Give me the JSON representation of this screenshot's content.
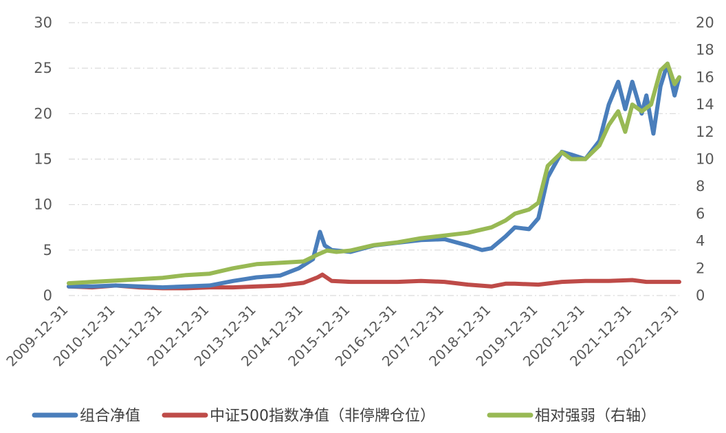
{
  "chart_data": {
    "type": "line",
    "left_axis": {
      "ylim": [
        0,
        30
      ],
      "ticks": [
        "0",
        "5",
        "10",
        "15",
        "20",
        "25",
        "30"
      ]
    },
    "right_axis": {
      "ylim": [
        0,
        20
      ],
      "ticks": [
        "0",
        "2",
        "4",
        "6",
        "8",
        "10",
        "12",
        "14",
        "16",
        "18",
        "20"
      ]
    },
    "x_ticks": [
      "2009-12-31",
      "2010-12-31",
      "2011-12-31",
      "2012-12-31",
      "2013-12-31",
      "2014-12-31",
      "2015-12-31",
      "2016-12-31",
      "2017-12-31",
      "2018-12-31",
      "2019-12-31",
      "2020-12-31",
      "2021-12-31",
      "2022-12-31"
    ],
    "grid": "horizontal dashed",
    "legend_position": "bottom",
    "colors": {
      "portfolio": "#4a7ebb",
      "csi500": "#be4b48",
      "relative": "#98b954"
    },
    "series": [
      {
        "name": "组合净值",
        "axis": "left",
        "color": "#4a7ebb",
        "x": [
          2010.0,
          2010.5,
          2011.0,
          2011.5,
          2012.0,
          2012.5,
          2013.0,
          2013.5,
          2014.0,
          2014.5,
          2014.9,
          2015.2,
          2015.35,
          2015.45,
          2015.6,
          2016.0,
          2016.5,
          2017.0,
          2017.5,
          2018.0,
          2018.5,
          2018.8,
          2019.0,
          2019.3,
          2019.5,
          2019.8,
          2020.0,
          2020.2,
          2020.5,
          2020.7,
          2021.0,
          2021.3,
          2021.5,
          2021.7,
          2021.85,
          2022.0,
          2022.2,
          2022.3,
          2022.45,
          2022.6,
          2022.75,
          2022.9,
          2023.0
        ],
        "y": [
          1.0,
          1.0,
          1.1,
          1.0,
          0.9,
          1.0,
          1.1,
          1.6,
          2.0,
          2.2,
          3.0,
          4.0,
          7.0,
          5.5,
          5.0,
          4.8,
          5.5,
          5.8,
          6.1,
          6.2,
          5.5,
          5.0,
          5.2,
          6.5,
          7.5,
          7.3,
          8.5,
          13.0,
          15.8,
          15.5,
          15.0,
          17.0,
          21.0,
          23.5,
          20.5,
          23.5,
          20.0,
          22.0,
          17.8,
          23.0,
          25.5,
          22.0,
          24.0
        ]
      },
      {
        "name": "中证500指数净值（非停牌仓位）",
        "axis": "left",
        "color": "#be4b48",
        "x": [
          2010.0,
          2010.5,
          2011.0,
          2011.5,
          2012.0,
          2012.5,
          2013.0,
          2013.5,
          2014.0,
          2014.5,
          2015.0,
          2015.3,
          2015.4,
          2015.6,
          2016.0,
          2016.5,
          2017.0,
          2017.5,
          2018.0,
          2018.5,
          2019.0,
          2019.3,
          2019.5,
          2020.0,
          2020.5,
          2021.0,
          2021.5,
          2022.0,
          2022.3,
          2022.6,
          2023.0
        ],
        "y": [
          1.0,
          0.9,
          1.1,
          0.9,
          0.8,
          0.8,
          0.9,
          0.9,
          1.0,
          1.1,
          1.4,
          2.0,
          2.3,
          1.6,
          1.5,
          1.5,
          1.5,
          1.6,
          1.5,
          1.2,
          1.0,
          1.3,
          1.3,
          1.2,
          1.5,
          1.6,
          1.6,
          1.7,
          1.5,
          1.5,
          1.5
        ]
      },
      {
        "name": "相对强弱（右轴）",
        "axis": "right",
        "color": "#98b954",
        "x": [
          2010.0,
          2010.5,
          2011.0,
          2011.5,
          2012.0,
          2012.5,
          2013.0,
          2013.5,
          2014.0,
          2014.5,
          2015.0,
          2015.3,
          2015.5,
          2015.7,
          2016.0,
          2016.5,
          2017.0,
          2017.5,
          2018.0,
          2018.5,
          2019.0,
          2019.3,
          2019.5,
          2019.8,
          2020.0,
          2020.2,
          2020.5,
          2020.7,
          2021.0,
          2021.3,
          2021.5,
          2021.7,
          2021.85,
          2022.0,
          2022.2,
          2022.4,
          2022.6,
          2022.75,
          2022.9,
          2023.0
        ],
        "y": [
          0.9,
          1.0,
          1.1,
          1.2,
          1.3,
          1.5,
          1.6,
          2.0,
          2.3,
          2.4,
          2.5,
          3.0,
          3.3,
          3.2,
          3.3,
          3.7,
          3.9,
          4.2,
          4.4,
          4.6,
          5.0,
          5.5,
          6.0,
          6.3,
          6.8,
          9.5,
          10.5,
          10.0,
          10.0,
          11.0,
          12.5,
          13.5,
          12.0,
          14.0,
          13.5,
          14.0,
          16.5,
          17.0,
          15.5,
          16.0
        ]
      }
    ]
  }
}
